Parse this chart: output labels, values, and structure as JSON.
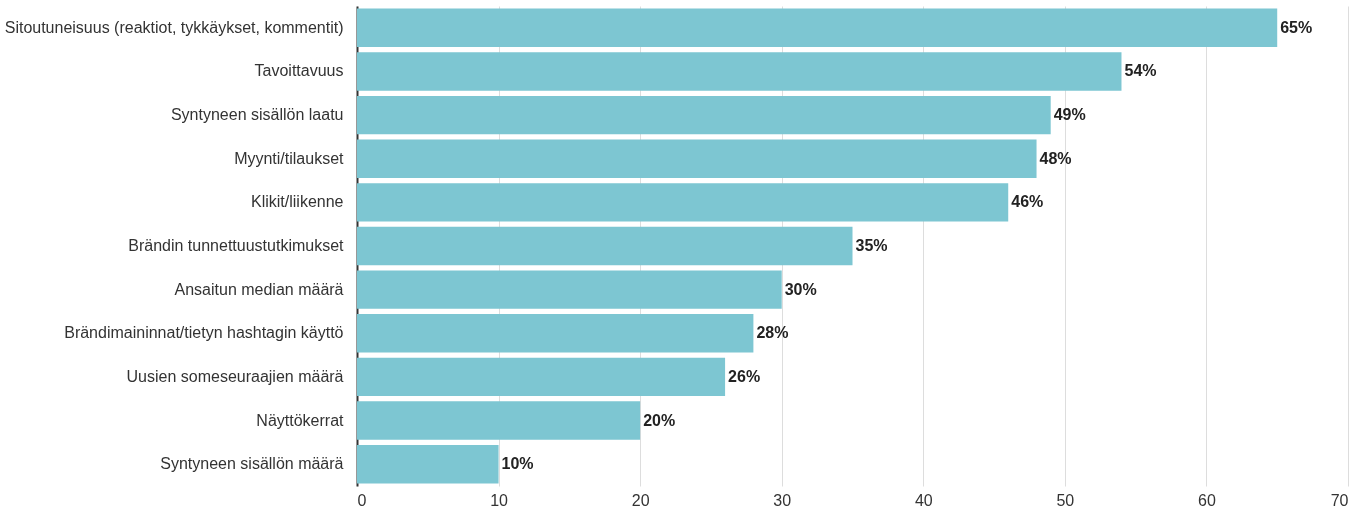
{
  "chart_data": {
    "type": "bar",
    "orientation": "horizontal",
    "categories": [
      "Sitoutuneisuus (reaktiot, tykkäykset, kommentit)",
      "Tavoittavuus",
      "Syntyneen sisällön laatu",
      "Myynti/tilaukset",
      "Klikit/liikenne",
      "Brändin tunnettuustutkimukset",
      "Ansaitun median määrä",
      "Brändimaininnat/tietyn hashtagin käyttö",
      "Uusien someseuraajien määrä",
      "Näyttökerrat",
      "Syntyneen sisällön määrä"
    ],
    "values": [
      65,
      54,
      49,
      48,
      46,
      35,
      30,
      28,
      26,
      20,
      10
    ],
    "value_labels": [
      "65%",
      "54%",
      "49%",
      "48%",
      "46%",
      "35%",
      "30%",
      "28%",
      "26%",
      "20%",
      "10%"
    ],
    "color": "#7dc6d2",
    "xlim": [
      0,
      70
    ],
    "xticks": [
      0,
      10,
      20,
      30,
      40,
      50,
      60,
      70
    ],
    "grid": "x"
  }
}
